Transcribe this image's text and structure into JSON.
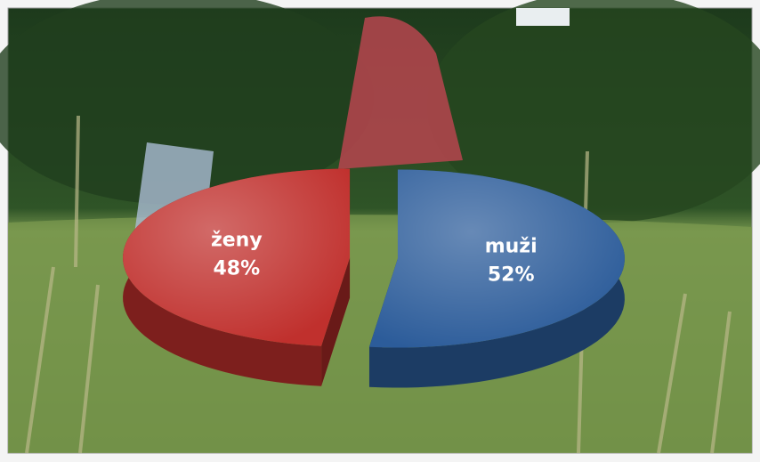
{
  "chart_data": {
    "type": "pie",
    "categories": [
      "ženy",
      "muži"
    ],
    "values": [
      48,
      52
    ],
    "value_labels": [
      "48%",
      "52%"
    ],
    "colors": [
      "#c0302d",
      "#2c5c9a"
    ]
  }
}
